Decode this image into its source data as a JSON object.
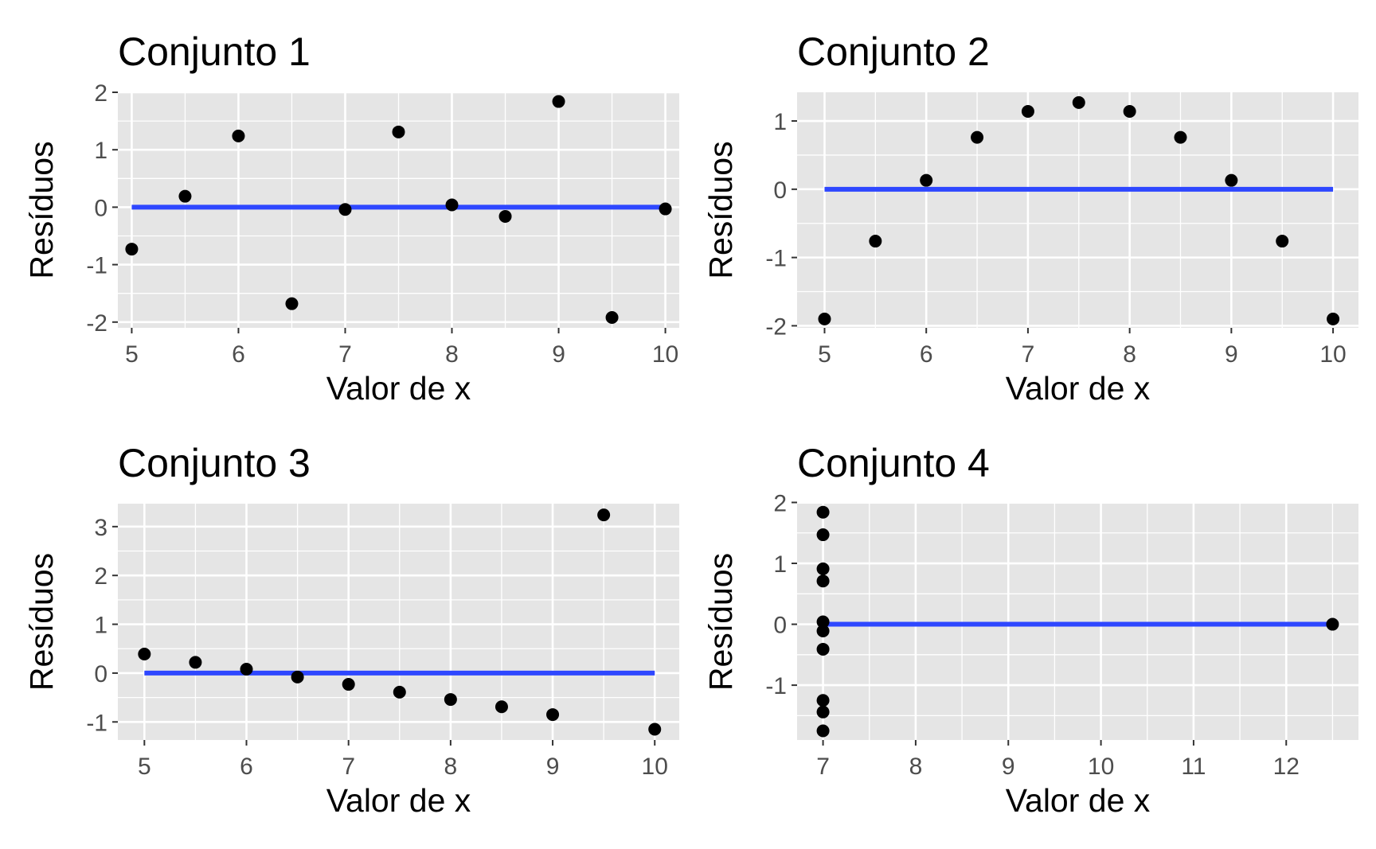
{
  "figure": {
    "panel_background": "#e5e5e5",
    "grid_color": "#ffffff",
    "point_color": "#000000",
    "line_color": "#2e47ff"
  },
  "chart_data": [
    {
      "type": "scatter",
      "title": "Conjunto 1",
      "xlabel": "Valor de x",
      "ylabel": "Resíduos",
      "xlim": [
        4.87,
        10.13
      ],
      "ylim": [
        -2.1,
        2.0
      ],
      "xticks": [
        5,
        6,
        7,
        8,
        9,
        10
      ],
      "yticks": [
        -2,
        -1,
        0,
        1,
        2
      ],
      "x": [
        5,
        5.5,
        6,
        6.5,
        7,
        7.5,
        8,
        8.5,
        9,
        9.5,
        10
      ],
      "y": [
        -0.73,
        0.19,
        1.24,
        -1.68,
        -0.04,
        1.31,
        0.04,
        -0.16,
        1.84,
        -1.92,
        -0.03
      ],
      "fit_line": {
        "x": [
          5,
          10
        ],
        "y": [
          0,
          0
        ]
      }
    },
    {
      "type": "scatter",
      "title": "Conjunto 2",
      "xlabel": "Valor de x",
      "ylabel": "Resíduos",
      "xlim": [
        4.73,
        10.25
      ],
      "ylim": [
        -2.03,
        1.42
      ],
      "xticks": [
        5,
        6,
        7,
        8,
        9,
        10
      ],
      "yticks": [
        -2,
        -1,
        0,
        1
      ],
      "x": [
        5,
        5.5,
        6,
        6.5,
        7,
        7.5,
        8,
        8.5,
        9,
        9.5,
        10
      ],
      "y": [
        -1.9,
        -0.76,
        0.13,
        0.76,
        1.14,
        1.27,
        1.14,
        0.76,
        0.13,
        -0.76,
        -1.9
      ],
      "fit_line": {
        "x": [
          5,
          10
        ],
        "y": [
          0,
          0
        ]
      }
    },
    {
      "type": "scatter",
      "title": "Conjunto 3",
      "xlabel": "Valor de x",
      "ylabel": "Resíduos",
      "xlim": [
        4.74,
        10.24
      ],
      "ylim": [
        -1.37,
        3.47
      ],
      "xticks": [
        5,
        6,
        7,
        8,
        9,
        10
      ],
      "yticks": [
        -1,
        0,
        1,
        2,
        3
      ],
      "x": [
        5,
        5.5,
        6,
        6.5,
        7,
        7.5,
        8,
        8.5,
        9,
        9.5,
        10
      ],
      "y": [
        0.39,
        0.22,
        0.08,
        -0.08,
        -0.23,
        -0.39,
        -0.54,
        -0.69,
        -0.85,
        3.24,
        -1.15
      ],
      "fit_line": {
        "x": [
          5,
          10
        ],
        "y": [
          0,
          0
        ]
      }
    },
    {
      "type": "scatter",
      "title": "Conjunto 4",
      "xlabel": "Valor de x",
      "ylabel": "Resíduos",
      "xlim": [
        6.72,
        12.78
      ],
      "ylim": [
        -1.9,
        1.98
      ],
      "xticks": [
        7,
        8,
        9,
        10,
        11,
        12
      ],
      "yticks": [
        -1,
        0,
        1,
        2
      ],
      "x": [
        7,
        7,
        7,
        7,
        7,
        7,
        7,
        7,
        7,
        7,
        12.5
      ],
      "y": [
        1.84,
        1.47,
        0.91,
        0.71,
        0.04,
        -0.11,
        -0.41,
        -1.25,
        -1.44,
        -1.75,
        0
      ],
      "fit_line": {
        "x": [
          7,
          12.5
        ],
        "y": [
          0,
          0
        ]
      }
    }
  ]
}
